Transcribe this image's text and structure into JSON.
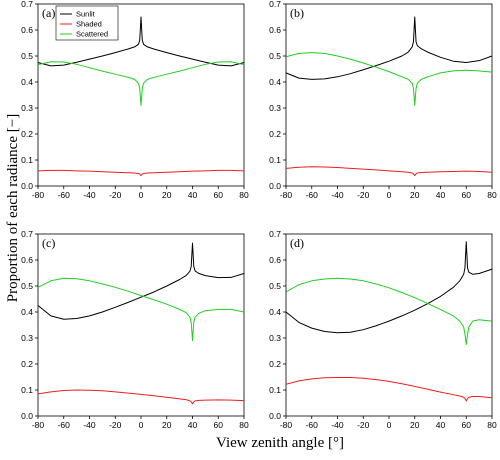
{
  "ylabel": "Proportion of each radiance [−]",
  "xlabel": "View zenith angle [°]",
  "colors": {
    "Sunlit": "#000000",
    "Shaded": "#e8211e",
    "Scattered": "#22cc22"
  },
  "legend": [
    "Sunlit",
    "Shaded",
    "Scattered"
  ],
  "chart_data": [
    {
      "type": "line",
      "panel": "(a)",
      "xlim": [
        -80,
        80
      ],
      "ylim": [
        0,
        0.7
      ],
      "xticks": [
        -80,
        -60,
        -40,
        -20,
        0,
        20,
        40,
        60,
        80
      ],
      "yticks": [
        0.0,
        0.1,
        0.2,
        0.3,
        0.4,
        0.5,
        0.6,
        0.7
      ],
      "x": [
        -80,
        -70,
        -60,
        -50,
        -40,
        -30,
        -20,
        -10,
        -5,
        -2,
        -1,
        0,
        1,
        2,
        5,
        10,
        20,
        30,
        40,
        50,
        60,
        70,
        80
      ],
      "series": [
        {
          "name": "Sunlit",
          "values": [
            0.475,
            0.462,
            0.465,
            0.476,
            0.488,
            0.5,
            0.513,
            0.527,
            0.535,
            0.545,
            0.56,
            0.65,
            0.56,
            0.545,
            0.535,
            0.527,
            0.513,
            0.5,
            0.488,
            0.476,
            0.465,
            0.462,
            0.475
          ]
        },
        {
          "name": "Shaded",
          "values": [
            0.058,
            0.06,
            0.06,
            0.058,
            0.057,
            0.055,
            0.053,
            0.051,
            0.05,
            0.048,
            0.046,
            0.04,
            0.046,
            0.048,
            0.05,
            0.051,
            0.053,
            0.055,
            0.057,
            0.058,
            0.06,
            0.06,
            0.058
          ]
        },
        {
          "name": "Scattered",
          "values": [
            0.467,
            0.478,
            0.477,
            0.468,
            0.455,
            0.442,
            0.43,
            0.418,
            0.41,
            0.395,
            0.375,
            0.31,
            0.375,
            0.395,
            0.41,
            0.418,
            0.43,
            0.442,
            0.455,
            0.468,
            0.477,
            0.478,
            0.467
          ]
        }
      ]
    },
    {
      "type": "line",
      "panel": "(b)",
      "xlim": [
        -80,
        80
      ],
      "ylim": [
        0,
        0.7
      ],
      "xticks": [
        -80,
        -60,
        -40,
        -20,
        0,
        20,
        40,
        60,
        80
      ],
      "yticks": [
        0.0,
        0.1,
        0.2,
        0.3,
        0.4,
        0.5,
        0.6,
        0.7
      ],
      "x": [
        -80,
        -70,
        -60,
        -50,
        -40,
        -30,
        -20,
        -10,
        0,
        10,
        15,
        18,
        19,
        20,
        21,
        22,
        25,
        30,
        40,
        50,
        60,
        70,
        80
      ],
      "series": [
        {
          "name": "Sunlit",
          "values": [
            0.435,
            0.415,
            0.41,
            0.412,
            0.42,
            0.432,
            0.447,
            0.463,
            0.48,
            0.5,
            0.515,
            0.535,
            0.555,
            0.65,
            0.555,
            0.54,
            0.528,
            0.515,
            0.495,
            0.48,
            0.475,
            0.482,
            0.5
          ]
        },
        {
          "name": "Shaded",
          "values": [
            0.068,
            0.072,
            0.074,
            0.073,
            0.071,
            0.068,
            0.065,
            0.062,
            0.058,
            0.055,
            0.053,
            0.05,
            0.047,
            0.04,
            0.047,
            0.05,
            0.052,
            0.053,
            0.055,
            0.056,
            0.057,
            0.056,
            0.053
          ]
        },
        {
          "name": "Scattered",
          "values": [
            0.497,
            0.51,
            0.513,
            0.51,
            0.5,
            0.488,
            0.473,
            0.457,
            0.44,
            0.42,
            0.41,
            0.395,
            0.375,
            0.31,
            0.375,
            0.395,
            0.41,
            0.42,
            0.435,
            0.443,
            0.445,
            0.443,
            0.438
          ]
        }
      ]
    },
    {
      "type": "line",
      "panel": "(c)",
      "xlim": [
        -80,
        80
      ],
      "ylim": [
        0,
        0.7
      ],
      "xticks": [
        -80,
        -60,
        -40,
        -20,
        0,
        20,
        40,
        60,
        80
      ],
      "yticks": [
        0.0,
        0.1,
        0.2,
        0.3,
        0.4,
        0.5,
        0.6,
        0.7
      ],
      "x": [
        -80,
        -70,
        -60,
        -50,
        -40,
        -30,
        -20,
        -10,
        0,
        10,
        20,
        30,
        35,
        38,
        39,
        40,
        41,
        42,
        45,
        50,
        60,
        70,
        80
      ],
      "series": [
        {
          "name": "Sunlit",
          "values": [
            0.425,
            0.385,
            0.372,
            0.375,
            0.385,
            0.4,
            0.418,
            0.437,
            0.457,
            0.477,
            0.5,
            0.525,
            0.54,
            0.557,
            0.575,
            0.665,
            0.575,
            0.558,
            0.548,
            0.54,
            0.532,
            0.533,
            0.548
          ]
        },
        {
          "name": "Shaded",
          "values": [
            0.085,
            0.093,
            0.098,
            0.1,
            0.099,
            0.097,
            0.093,
            0.088,
            0.083,
            0.078,
            0.072,
            0.066,
            0.063,
            0.058,
            0.054,
            0.047,
            0.054,
            0.058,
            0.06,
            0.061,
            0.062,
            0.061,
            0.059
          ]
        },
        {
          "name": "Scattered",
          "values": [
            0.495,
            0.52,
            0.53,
            0.528,
            0.52,
            0.508,
            0.495,
            0.48,
            0.463,
            0.447,
            0.43,
            0.41,
            0.398,
            0.38,
            0.36,
            0.29,
            0.36,
            0.38,
            0.395,
            0.405,
            0.41,
            0.41,
            0.4
          ]
        }
      ]
    },
    {
      "type": "line",
      "panel": "(d)",
      "xlim": [
        -80,
        80
      ],
      "ylim": [
        0,
        0.7
      ],
      "xticks": [
        -80,
        -60,
        -40,
        -20,
        0,
        20,
        40,
        60,
        80
      ],
      "yticks": [
        0.0,
        0.1,
        0.2,
        0.3,
        0.4,
        0.5,
        0.6,
        0.7
      ],
      "x": [
        -80,
        -70,
        -60,
        -50,
        -40,
        -30,
        -20,
        -10,
        0,
        10,
        20,
        30,
        40,
        50,
        55,
        58,
        59,
        60,
        61,
        62,
        65,
        70,
        80
      ],
      "series": [
        {
          "name": "Sunlit",
          "values": [
            0.4,
            0.36,
            0.338,
            0.325,
            0.32,
            0.322,
            0.332,
            0.347,
            0.365,
            0.385,
            0.407,
            0.432,
            0.46,
            0.495,
            0.52,
            0.545,
            0.57,
            0.67,
            0.57,
            0.553,
            0.545,
            0.548,
            0.565
          ]
        },
        {
          "name": "Shaded",
          "values": [
            0.122,
            0.135,
            0.143,
            0.147,
            0.148,
            0.148,
            0.145,
            0.14,
            0.133,
            0.124,
            0.114,
            0.103,
            0.092,
            0.082,
            0.077,
            0.072,
            0.067,
            0.058,
            0.067,
            0.072,
            0.075,
            0.075,
            0.07
          ]
        },
        {
          "name": "Scattered",
          "values": [
            0.477,
            0.505,
            0.52,
            0.527,
            0.53,
            0.527,
            0.52,
            0.508,
            0.493,
            0.475,
            0.455,
            0.433,
            0.41,
            0.385,
            0.365,
            0.342,
            0.315,
            0.275,
            0.315,
            0.342,
            0.365,
            0.37,
            0.365
          ]
        }
      ]
    }
  ]
}
